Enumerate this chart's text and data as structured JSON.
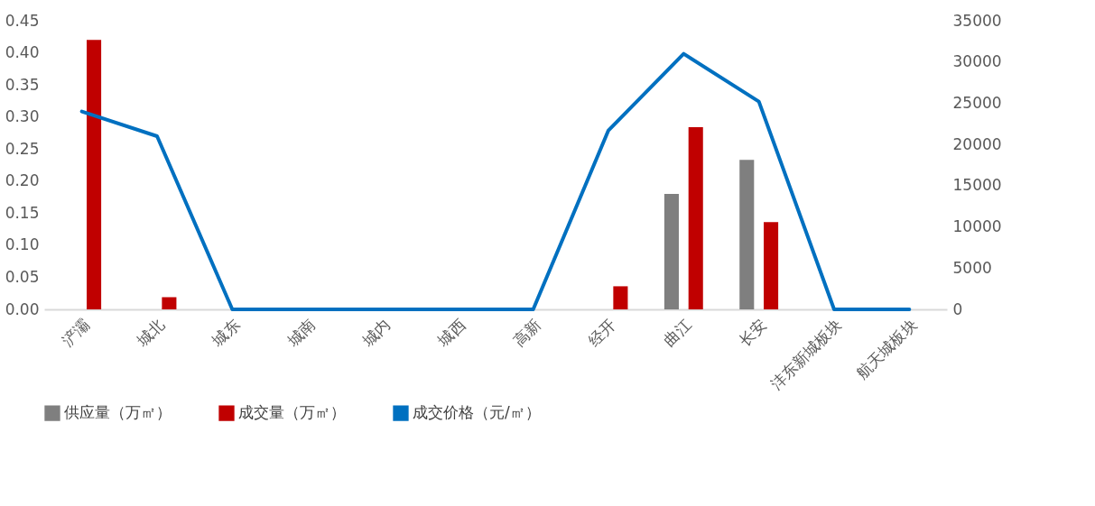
{
  "chart_data": {
    "type": "bar",
    "categories": [
      "浐灞",
      "城北",
      "城东",
      "城南",
      "城内",
      "城西",
      "高新",
      "经开",
      "曲江",
      "长安",
      "沣东新城板块",
      "航天城板块"
    ],
    "series": [
      {
        "name": "供应量（万㎡）",
        "color": "#7f7f7f",
        "values": [
          0,
          0,
          0,
          0,
          0,
          0,
          0,
          0,
          0.18,
          0.233,
          0,
          0
        ]
      },
      {
        "name": "成交量（万㎡）",
        "color": "#c00000",
        "values": [
          0.42,
          0.019,
          0,
          0,
          0,
          0,
          0,
          0.036,
          0.284,
          0.136,
          0,
          0
        ]
      },
      {
        "name": "成交价格（元/㎡）",
        "type": "line",
        "axis": "y2",
        "color": "#0070c0",
        "values": [
          24000,
          21000,
          0,
          0,
          0,
          0,
          0,
          21700,
          31000,
          25200,
          0,
          0
        ]
      }
    ],
    "ylim": [
      0,
      0.45
    ],
    "yticks": [
      {
        "value": 0,
        "label": "0.00"
      },
      {
        "value": 0.05,
        "label": "0.05"
      },
      {
        "value": 0.1,
        "label": "0.10"
      },
      {
        "value": 0.15,
        "label": "0.15"
      },
      {
        "value": 0.2,
        "label": "0.20"
      },
      {
        "value": 0.25,
        "label": "0.25"
      },
      {
        "value": 0.3,
        "label": "0.30"
      },
      {
        "value": 0.35,
        "label": "0.35"
      },
      {
        "value": 0.4,
        "label": "0.40"
      },
      {
        "value": 0.45,
        "label": "0.45"
      }
    ],
    "y2lim": [
      0,
      35000
    ],
    "y2ticks": [
      0,
      5000,
      10000,
      15000,
      20000,
      25000,
      30000,
      35000
    ],
    "grid": false,
    "legend": "bottom"
  }
}
